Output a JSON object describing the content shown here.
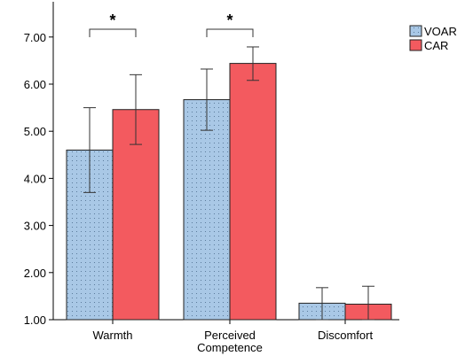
{
  "chart_data": {
    "type": "bar",
    "categories": [
      "Warmth",
      "Perceived\nCompetence",
      "Discomfort"
    ],
    "series": [
      {
        "name": "VOAR",
        "color": "#a9c8e6",
        "pattern": "dotted",
        "values": [
          4.6,
          5.67,
          1.35
        ],
        "err_low": [
          3.7,
          5.02,
          1.0
        ],
        "err_high": [
          5.5,
          6.32,
          1.68
        ]
      },
      {
        "name": "CAR",
        "color": "#f35a5f",
        "pattern": "solid",
        "values": [
          5.46,
          6.44,
          1.33
        ],
        "err_low": [
          4.72,
          6.08,
          1.0
        ],
        "err_high": [
          6.2,
          6.79,
          1.71
        ]
      }
    ],
    "y_ticks": [
      "1.00",
      "2.00",
      "3.00",
      "4.00",
      "5.00",
      "6.00",
      "7.00"
    ],
    "ylim": [
      1.0,
      7.4
    ],
    "significance": [
      {
        "category_index": 0,
        "y": 7.3,
        "label": "*"
      },
      {
        "category_index": 1,
        "y": 7.3,
        "label": "*"
      }
    ],
    "legend_position": "top-right",
    "grid": false
  }
}
